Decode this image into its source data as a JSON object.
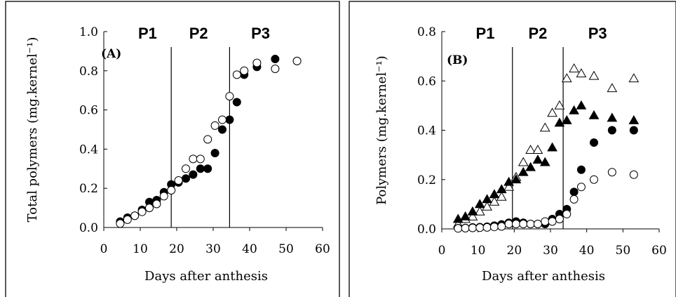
{
  "chart_data": [
    {
      "type": "scatter",
      "panel_label": "(A)",
      "xlabel": "Days after anthesis",
      "ylabel": "Total polymers (mg.kernel⁻¹)",
      "xlim": [
        0,
        60
      ],
      "ylim": [
        0,
        1.0
      ],
      "xticks": [
        0,
        10,
        20,
        30,
        40,
        50,
        60
      ],
      "yticks": [
        0.0,
        0.2,
        0.4,
        0.6,
        0.8,
        1.0
      ],
      "ytick_labels": [
        "0.0",
        "0.2",
        "0.4",
        "0.6",
        "0.8",
        "1.0"
      ],
      "xtick_labels": [
        "0",
        "10",
        "20",
        "30",
        "40",
        "50",
        "60"
      ],
      "phase_boundaries": [
        18.5,
        34.5
      ],
      "phases": [
        {
          "label": "P1",
          "x": 12
        },
        {
          "label": "P2",
          "x": 26
        },
        {
          "label": "P3",
          "x": 43
        }
      ],
      "series": [
        {
          "marker": "filled-circle",
          "points": [
            [
              4.5,
              0.03
            ],
            [
              6.5,
              0.05
            ],
            [
              8.5,
              0.06
            ],
            [
              10.5,
              0.09
            ],
            [
              12.5,
              0.13
            ],
            [
              14.5,
              0.14
            ],
            [
              16.5,
              0.18
            ],
            [
              18.5,
              0.22
            ],
            [
              20.5,
              0.23
            ],
            [
              22.5,
              0.25
            ],
            [
              24.5,
              0.27
            ],
            [
              26.5,
              0.3
            ],
            [
              28.5,
              0.3
            ],
            [
              30.5,
              0.38
            ],
            [
              32.5,
              0.5
            ],
            [
              34.5,
              0.55
            ],
            [
              36.5,
              0.64
            ],
            [
              38.5,
              0.78
            ],
            [
              42.0,
              0.82
            ],
            [
              47.0,
              0.86
            ],
            [
              53.0,
              0.85
            ]
          ]
        },
        {
          "marker": "open-circle",
          "points": [
            [
              4.5,
              0.02
            ],
            [
              6.5,
              0.04
            ],
            [
              8.5,
              0.06
            ],
            [
              10.5,
              0.08
            ],
            [
              12.5,
              0.1
            ],
            [
              14.5,
              0.12
            ],
            [
              16.5,
              0.16
            ],
            [
              18.5,
              0.19
            ],
            [
              20.5,
              0.24
            ],
            [
              22.5,
              0.3
            ],
            [
              24.5,
              0.35
            ],
            [
              26.5,
              0.35
            ],
            [
              28.5,
              0.45
            ],
            [
              30.5,
              0.52
            ],
            [
              32.5,
              0.55
            ],
            [
              34.5,
              0.67
            ],
            [
              36.5,
              0.78
            ],
            [
              38.5,
              0.8
            ],
            [
              42.0,
              0.84
            ],
            [
              47.0,
              0.81
            ],
            [
              53.0,
              0.85
            ]
          ]
        }
      ]
    },
    {
      "type": "scatter",
      "panel_label": "(B)",
      "xlabel": "Days after anthesis",
      "ylabel": "Polymers (mg.kernel⁻¹)",
      "xlim": [
        0,
        60
      ],
      "ylim": [
        0,
        0.8
      ],
      "xticks": [
        0,
        10,
        20,
        30,
        40,
        50,
        60
      ],
      "yticks": [
        0.0,
        0.2,
        0.4,
        0.6,
        0.8
      ],
      "ytick_labels": [
        "0.0",
        "0.2",
        "0.4",
        "0.6",
        "0.8"
      ],
      "xtick_labels": [
        "0",
        "10",
        "20",
        "30",
        "40",
        "50",
        "60"
      ],
      "phase_boundaries": [
        19.5,
        33.5
      ],
      "phases": [
        {
          "label": "P1",
          "x": 12
        },
        {
          "label": "P2",
          "x": 26.5
        },
        {
          "label": "P3",
          "x": 43
        }
      ],
      "series": [
        {
          "marker": "open-triangle",
          "points": [
            [
              4.5,
              0.02
            ],
            [
              6.5,
              0.04
            ],
            [
              8.5,
              0.05
            ],
            [
              10.5,
              0.07
            ],
            [
              12.5,
              0.09
            ],
            [
              14.5,
              0.11
            ],
            [
              16.5,
              0.13
            ],
            [
              18.5,
              0.17
            ],
            [
              20.5,
              0.21
            ],
            [
              22.5,
              0.27
            ],
            [
              24.5,
              0.32
            ],
            [
              26.5,
              0.32
            ],
            [
              28.5,
              0.41
            ],
            [
              30.5,
              0.47
            ],
            [
              32.5,
              0.5
            ],
            [
              34.5,
              0.61
            ],
            [
              36.5,
              0.65
            ],
            [
              38.5,
              0.63
            ],
            [
              42.0,
              0.62
            ],
            [
              47.0,
              0.57
            ],
            [
              53.0,
              0.61
            ]
          ]
        },
        {
          "marker": "filled-triangle",
          "points": [
            [
              4.5,
              0.04
            ],
            [
              6.5,
              0.05
            ],
            [
              8.5,
              0.07
            ],
            [
              10.5,
              0.1
            ],
            [
              12.5,
              0.12
            ],
            [
              14.5,
              0.14
            ],
            [
              16.5,
              0.16
            ],
            [
              18.5,
              0.19
            ],
            [
              20.5,
              0.2
            ],
            [
              22.5,
              0.23
            ],
            [
              24.5,
              0.25
            ],
            [
              26.5,
              0.28
            ],
            [
              28.5,
              0.27
            ],
            [
              30.5,
              0.33
            ],
            [
              32.5,
              0.43
            ],
            [
              34.5,
              0.44
            ],
            [
              36.5,
              0.48
            ],
            [
              38.5,
              0.5
            ],
            [
              42.0,
              0.46
            ],
            [
              47.0,
              0.45
            ],
            [
              53.0,
              0.44
            ]
          ]
        },
        {
          "marker": "filled-circle",
          "points": [
            [
              4.5,
              0.003
            ],
            [
              6.5,
              0.004
            ],
            [
              8.5,
              0.006
            ],
            [
              10.5,
              0.007
            ],
            [
              12.5,
              0.009
            ],
            [
              14.5,
              0.013
            ],
            [
              16.5,
              0.018
            ],
            [
              18.5,
              0.025
            ],
            [
              20.5,
              0.03
            ],
            [
              22.5,
              0.025
            ],
            [
              24.5,
              0.02
            ],
            [
              26.5,
              0.02
            ],
            [
              28.5,
              0.02
            ],
            [
              30.5,
              0.04
            ],
            [
              32.5,
              0.06
            ],
            [
              34.5,
              0.08
            ],
            [
              36.5,
              0.15
            ],
            [
              38.5,
              0.24
            ],
            [
              42.0,
              0.35
            ],
            [
              47.0,
              0.4
            ],
            [
              53.0,
              0.4
            ]
          ]
        },
        {
          "marker": "open-circle",
          "points": [
            [
              4.5,
              0.002
            ],
            [
              6.5,
              0.003
            ],
            [
              8.5,
              0.004
            ],
            [
              10.5,
              0.005
            ],
            [
              12.5,
              0.006
            ],
            [
              14.5,
              0.008
            ],
            [
              16.5,
              0.01
            ],
            [
              18.5,
              0.02
            ],
            [
              20.5,
              0.02
            ],
            [
              22.5,
              0.02
            ],
            [
              24.5,
              0.02
            ],
            [
              26.5,
              0.02
            ],
            [
              28.5,
              0.03
            ],
            [
              30.5,
              0.03
            ],
            [
              32.5,
              0.04
            ],
            [
              34.5,
              0.06
            ],
            [
              36.5,
              0.12
            ],
            [
              38.5,
              0.17
            ],
            [
              42.0,
              0.2
            ],
            [
              47.0,
              0.23
            ],
            [
              53.0,
              0.22
            ]
          ]
        }
      ]
    }
  ]
}
